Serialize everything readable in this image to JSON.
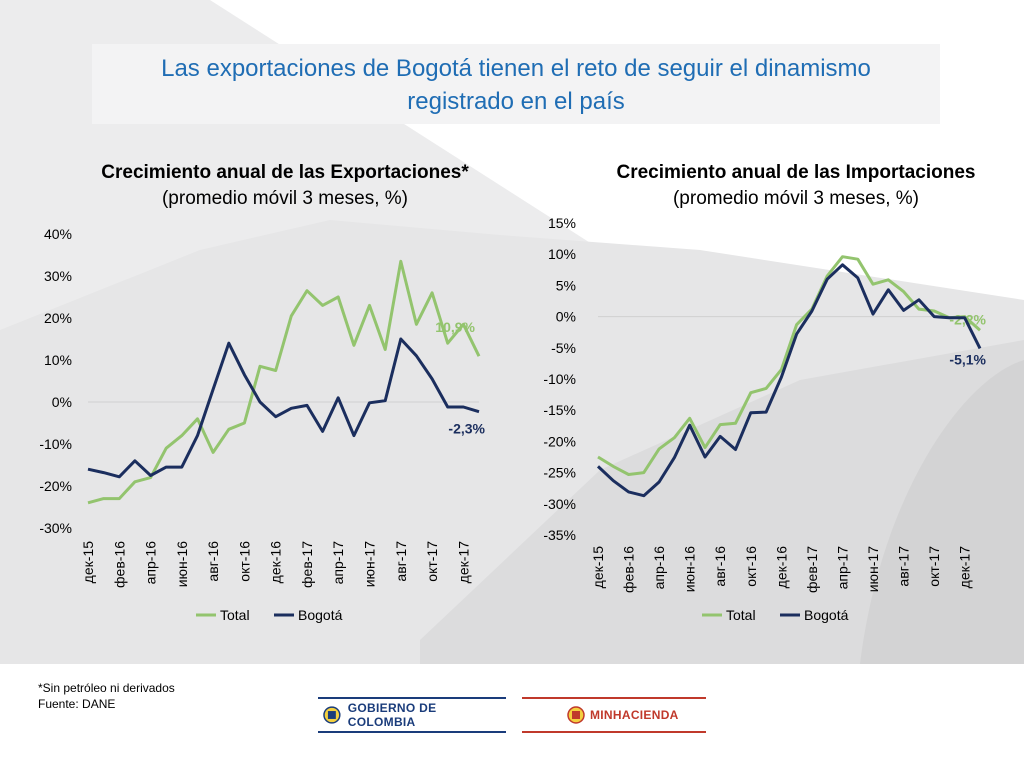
{
  "page": {
    "title_line1": "Las exportaciones de Bogotá tienen el reto de seguir el dinamismo",
    "title_line2": "registrado en el país"
  },
  "colors": {
    "title": "#1f6db4",
    "total": "#93c46e",
    "bogota": "#1b2e5e",
    "footer_blue": "#1a3c7b",
    "footer_red": "#c0392b"
  },
  "chart_data": [
    {
      "type": "line",
      "title": "Crecimiento anual de las Exportaciones*",
      "subtitle": "(promedio móvil 3 meses, %)",
      "ylim": [
        -30,
        40
      ],
      "yticks": [
        "40%",
        "30%",
        "20%",
        "10%",
        "0%",
        "-10%",
        "-20%",
        "-30%"
      ],
      "ytick_values": [
        40,
        30,
        20,
        10,
        0,
        -10,
        -20,
        -30
      ],
      "xticks": [
        "дек-15",
        "фев-16",
        "апр-16",
        "июн-16",
        "авг-16",
        "окт-16",
        "дек-16",
        "фев-17",
        "апр-17",
        "июн-17",
        "авг-17",
        "окт-17",
        "дек-17"
      ],
      "series": [
        {
          "name": "Total",
          "color": "#93c46e",
          "end_label": "10,9%",
          "values": [
            -24,
            -23,
            -23,
            -19,
            -18,
            -11,
            -8,
            -4,
            -12,
            -6.5,
            -5,
            8.5,
            7.5,
            20.5,
            26.5,
            23,
            25,
            13.5,
            23,
            12.5,
            33.5,
            18.5,
            26,
            14,
            18.5,
            10.9
          ]
        },
        {
          "name": "Bogotá",
          "color": "#1b2e5e",
          "end_label": "-2,3%",
          "values": [
            -16,
            -16.8,
            -17.8,
            -14,
            -17.5,
            -15.5,
            -15.5,
            -8,
            3,
            14,
            6.5,
            0,
            -3.5,
            -1.5,
            -0.8,
            -7,
            1,
            -8,
            -0.2,
            0.3,
            15,
            11,
            5.5,
            -1.2,
            -1.2,
            -2.3
          ]
        }
      ],
      "legend": [
        "Total",
        "Bogotá"
      ]
    },
    {
      "type": "line",
      "title": "Crecimiento anual de las Importaciones",
      "subtitle": "(promedio móvil 3 meses, %)",
      "ylim": [
        -35,
        15
      ],
      "yticks": [
        "15%",
        "10%",
        "5%",
        "0%",
        "-5%",
        "-10%",
        "-15%",
        "-20%",
        "-25%",
        "-30%",
        "-35%"
      ],
      "ytick_values": [
        15,
        10,
        5,
        0,
        -5,
        -10,
        -15,
        -20,
        -25,
        -30,
        -35
      ],
      "xticks": [
        "дек-15",
        "фев-16",
        "апр-16",
        "июн-16",
        "авг-16",
        "окт-16",
        "дек-16",
        "фев-17",
        "апр-17",
        "июн-17",
        "авг-17",
        "окт-17",
        "дек-17"
      ],
      "series": [
        {
          "name": "Total",
          "color": "#93c46e",
          "end_label": "-2,2%",
          "values": [
            -22.5,
            -24,
            -25.3,
            -25,
            -21.2,
            -19.4,
            -16.3,
            -21,
            -17.3,
            -17.1,
            -12.2,
            -11.5,
            -8.5,
            -1.3,
            1.2,
            6.5,
            9.6,
            9.2,
            5.2,
            5.9,
            4,
            1.2,
            0.9,
            -0.2,
            0,
            -2.2
          ]
        },
        {
          "name": "Bogotá",
          "color": "#1b2e5e",
          "end_label": "-5,1%",
          "values": [
            -24,
            -26.3,
            -28.1,
            -28.7,
            -26.5,
            -22.6,
            -17.4,
            -22.5,
            -19.2,
            -21.3,
            -15.4,
            -15.3,
            -9.7,
            -2.8,
            0.9,
            6,
            8.3,
            6.2,
            0.4,
            4.3,
            1,
            2.7,
            0,
            -0.2,
            -0.2,
            -5.1
          ]
        }
      ],
      "legend": [
        "Total",
        "Bogotá"
      ]
    }
  ],
  "footer": {
    "note1": "*Sin petróleo ni derivados",
    "note2": "Fuente: DANE",
    "logo1": "GOBIERNO DE COLOMBIA",
    "logo2": "MINHACIENDA"
  }
}
